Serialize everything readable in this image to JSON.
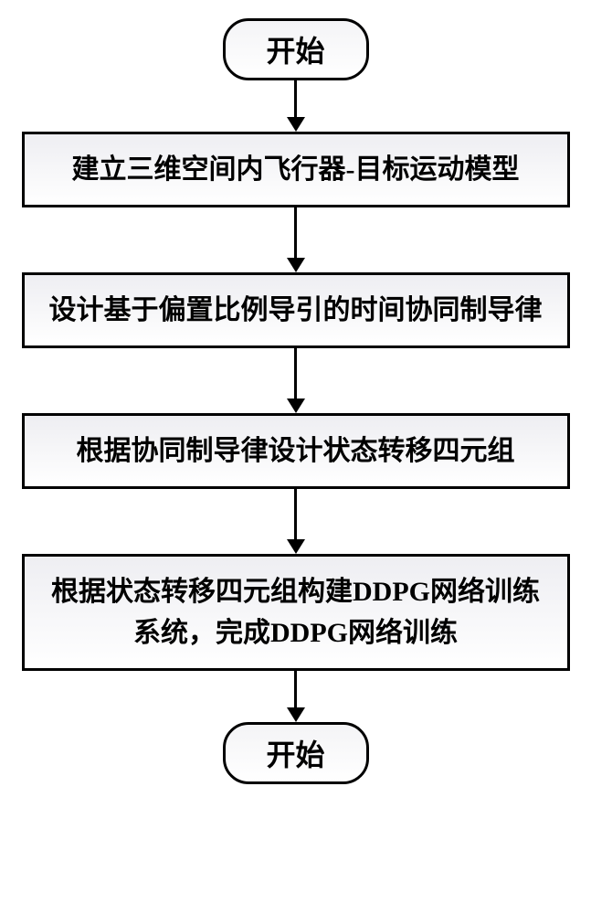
{
  "flowchart": {
    "type": "flowchart",
    "background_color": "#ffffff",
    "border_color": "#000000",
    "border_width": 3,
    "node_gradient_top": "#eeeef2",
    "node_gradient_bottom": "#ffffff",
    "terminal_gradient_top": "#f4f4f6",
    "terminal_gradient_bottom": "#ffffff",
    "font_size_terminal": 32,
    "font_size_process": 30,
    "font_weight": "bold",
    "terminal_border_radius": 28,
    "process_width": 600,
    "arrow_color": "#000000",
    "arrow_line_width": 3,
    "arrow_head_width": 20,
    "arrow_head_height": 16,
    "nodes": [
      {
        "id": "start",
        "shape": "terminal",
        "label": "开始"
      },
      {
        "id": "step1",
        "shape": "process",
        "label": "建立三维空间内飞行器-目标运动模型"
      },
      {
        "id": "step2",
        "shape": "process",
        "label": "设计基于偏置比例导引的时间协同制导律"
      },
      {
        "id": "step3",
        "shape": "process",
        "label": "根据协同制导律设计状态转移四元组"
      },
      {
        "id": "step4",
        "shape": "process",
        "label": "根据状态转移四元组构建DDPG网络训练系统，完成DDPG网络训练"
      },
      {
        "id": "end",
        "shape": "terminal",
        "label": "开始"
      }
    ],
    "edges": [
      {
        "from": "start",
        "to": "step1",
        "length": 40
      },
      {
        "from": "step1",
        "to": "step2",
        "length": 55
      },
      {
        "from": "step2",
        "to": "step3",
        "length": 55
      },
      {
        "from": "step3",
        "to": "step4",
        "length": 55
      },
      {
        "from": "step4",
        "to": "end",
        "length": 40
      }
    ]
  }
}
